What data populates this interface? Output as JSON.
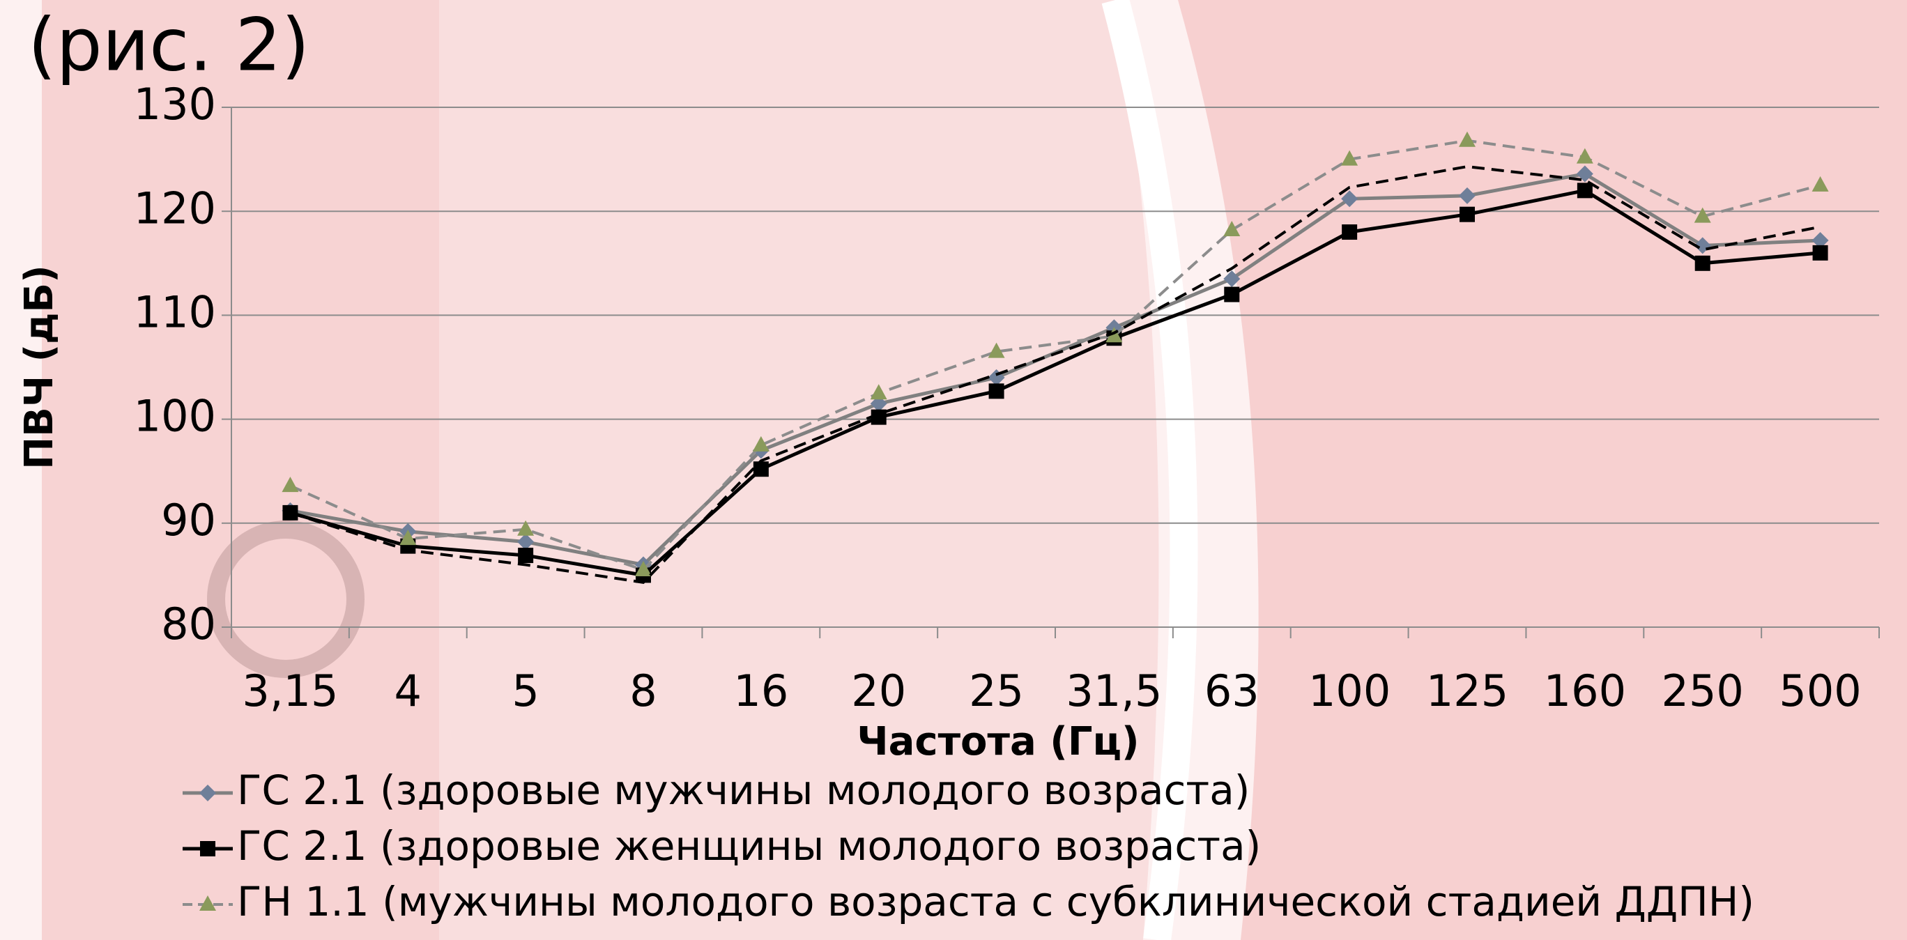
{
  "title": "(рис. 2)",
  "chart_data": {
    "type": "line",
    "y_label": "ПВЧ (дБ)",
    "x_label": "Частота (Гц)",
    "categories": [
      "3,15",
      "4",
      "5",
      "8",
      "16",
      "20",
      "25",
      "31,5",
      "63",
      "100",
      "125",
      "160",
      "250",
      "500"
    ],
    "ylim": [
      80,
      130
    ],
    "yticks": [
      80,
      90,
      100,
      110,
      120,
      130
    ],
    "grid": true,
    "series": [
      {
        "name": "ГС 2.1 (здоровые мужчины молодого возраста)",
        "color": "#808080",
        "dash": false,
        "marker": "diamond",
        "marker_color": "#6f7f99",
        "values": [
          91.2,
          89.2,
          88.2,
          86,
          97,
          101.5,
          104,
          108.8,
          113.5,
          121.2,
          121.5,
          123.6,
          116.7,
          117.2
        ]
      },
      {
        "name": "ГС 2.1 (здоровые женщины молодого возраста)",
        "color": "#000000",
        "dash": false,
        "marker": "square",
        "marker_color": "#000000",
        "values": [
          91,
          87.8,
          86.9,
          85,
          95.2,
          100.2,
          102.7,
          107.8,
          112,
          118,
          119.7,
          122,
          115,
          116
        ]
      },
      {
        "name": "ГН 1.1 (мужчины молодого возраста с субклинической стадией ДДПН)",
        "color": "#8c8c8c",
        "dash": true,
        "marker": "triangle",
        "marker_color": "#8a9a5b",
        "values": [
          93.6,
          88.5,
          89.4,
          85.5,
          97.5,
          102.5,
          106.5,
          108,
          118.2,
          125,
          126.8,
          125.2,
          119.5,
          122.5
        ]
      },
      {
        "color": "#000000",
        "dash": true,
        "marker": "none",
        "values": [
          91,
          87.4,
          86,
          84.3,
          96,
          100.5,
          104.3,
          108.3,
          114.5,
          122.3,
          124.3,
          123,
          116.3,
          118.5
        ]
      }
    ]
  }
}
